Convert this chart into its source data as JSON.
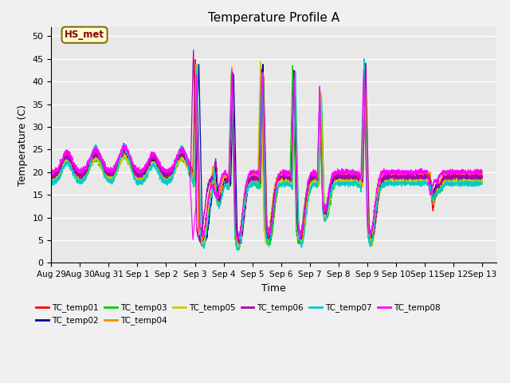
{
  "title": "Temperature Profile A",
  "xlabel": "Time",
  "ylabel": "Temperature (C)",
  "annotation_text": "HS_met",
  "series_colors": {
    "TC_temp01": "#ff0000",
    "TC_temp02": "#000099",
    "TC_temp03": "#00cc00",
    "TC_temp04": "#ff8800",
    "TC_temp05": "#cccc00",
    "TC_temp06": "#aa00aa",
    "TC_temp07": "#00cccc",
    "TC_temp08": "#ff00ff"
  },
  "x_tick_labels": [
    "Aug 29",
    "Aug 30",
    "Aug 31",
    "Sep 1",
    "Sep 2",
    "Sep 3",
    "Sep 4",
    "Sep 5",
    "Sep 6",
    "Sep 7",
    "Sep 8",
    "Sep 9",
    "Sep 10",
    "Sep 11",
    "Sep 12",
    "Sep 13"
  ],
  "x_tick_positions": [
    0,
    1,
    2,
    3,
    4,
    5,
    6,
    7,
    8,
    9,
    10,
    11,
    12,
    13,
    14,
    15
  ],
  "yticks": [
    0,
    5,
    10,
    15,
    20,
    25,
    30,
    35,
    40,
    45,
    50
  ],
  "ylim": [
    0,
    52
  ],
  "xlim": [
    0,
    15.5
  ],
  "bg_color": "#e8e8e8",
  "fig_color": "#f0f0f0",
  "grid_color": "#ffffff"
}
